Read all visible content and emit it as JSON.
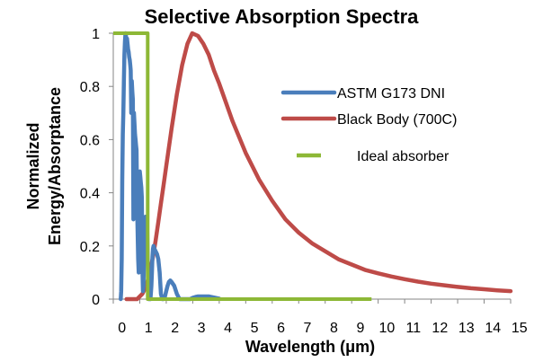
{
  "chart_data": {
    "type": "line",
    "title": "Selective Absorption Spectra",
    "xlabel": "Wavelength (μm)",
    "ylabel_lines": [
      "Normalized",
      "Energy/Absorptance"
    ],
    "xlim": [
      0,
      15
    ],
    "ylim": [
      0,
      1
    ],
    "x_ticks": [
      "0",
      "1",
      "2",
      "3",
      "4",
      "5",
      "6",
      "7",
      "8",
      "9",
      "10",
      "11",
      "12",
      "13",
      "14",
      "15"
    ],
    "y_ticks": [
      "0",
      "0.2",
      "0.4",
      "0.6",
      "0.8",
      "1"
    ],
    "grid": false,
    "legend_position": "right",
    "series": [
      {
        "name": "ASTM G173 DNI",
        "color": "#4A7EBB",
        "x": [
          0.28,
          0.3,
          0.32,
          0.34,
          0.36,
          0.38,
          0.4,
          0.42,
          0.44,
          0.46,
          0.48,
          0.5,
          0.52,
          0.54,
          0.56,
          0.58,
          0.6,
          0.62,
          0.64,
          0.66,
          0.68,
          0.7,
          0.72,
          0.74,
          0.76,
          0.78,
          0.8,
          0.82,
          0.84,
          0.86,
          0.88,
          0.9,
          0.92,
          0.94,
          0.96,
          0.98,
          1.0,
          1.02,
          1.04,
          1.06,
          1.08,
          1.1,
          1.12,
          1.14,
          1.16,
          1.18,
          1.2,
          1.22,
          1.24,
          1.26,
          1.28,
          1.3,
          1.32,
          1.34,
          1.36,
          1.38,
          1.4,
          1.42,
          1.44,
          1.46,
          1.48,
          1.5,
          1.52,
          1.55,
          1.6,
          1.65,
          1.7,
          1.75,
          1.8,
          1.85,
          1.9,
          1.95,
          2.0,
          2.05,
          2.1,
          2.15,
          2.2,
          2.3,
          2.4,
          2.5,
          2.6,
          2.7,
          2.8,
          2.9,
          3.0,
          3.1,
          3.2,
          3.3,
          3.4,
          3.5,
          3.6,
          3.7,
          3.8,
          3.9,
          4.0
        ],
        "y": [
          0.0,
          0.03,
          0.15,
          0.45,
          0.62,
          0.7,
          0.82,
          0.92,
          0.97,
          1.0,
          0.99,
          0.97,
          0.98,
          0.96,
          0.94,
          0.93,
          0.91,
          0.9,
          0.88,
          0.86,
          0.7,
          0.82,
          0.78,
          0.75,
          0.3,
          0.7,
          0.66,
          0.62,
          0.6,
          0.58,
          0.56,
          0.35,
          0.25,
          0.15,
          0.1,
          0.45,
          0.48,
          0.46,
          0.44,
          0.42,
          0.38,
          0.12,
          0.03,
          0.05,
          0.22,
          0.28,
          0.3,
          0.31,
          0.3,
          0.29,
          0.27,
          0.15,
          0.03,
          0.0,
          0.0,
          0.01,
          0.0,
          0.02,
          0.05,
          0.1,
          0.16,
          0.19,
          0.2,
          0.19,
          0.18,
          0.17,
          0.15,
          0.1,
          0.02,
          0.0,
          0.0,
          0.01,
          0.03,
          0.05,
          0.065,
          0.07,
          0.065,
          0.05,
          0.02,
          0.0,
          0.0,
          0.0,
          0.0,
          0.0,
          0.005,
          0.008,
          0.01,
          0.01,
          0.01,
          0.01,
          0.01,
          0.008,
          0.006,
          0.004,
          0.002
        ]
      },
      {
        "name": "Black Body (700C)",
        "color": "#BE4B48",
        "x": [
          0.5,
          0.7,
          0.9,
          1.0,
          1.1,
          1.2,
          1.3,
          1.4,
          1.5,
          1.6,
          1.7,
          1.8,
          1.9,
          2.0,
          2.2,
          2.4,
          2.6,
          2.8,
          2.98,
          3.2,
          3.4,
          3.6,
          3.8,
          4.0,
          4.5,
          5.0,
          5.5,
          6.0,
          6.5,
          7.0,
          7.5,
          8.0,
          8.5,
          9.0,
          9.5,
          10.0,
          10.5,
          11.0,
          11.5,
          12.0,
          12.5,
          13.0,
          13.5,
          14.0,
          14.5,
          15.0
        ],
        "y": [
          0.0,
          0.0,
          0.0,
          0.01,
          0.02,
          0.04,
          0.07,
          0.11,
          0.16,
          0.22,
          0.29,
          0.36,
          0.43,
          0.5,
          0.64,
          0.77,
          0.88,
          0.96,
          1.0,
          0.99,
          0.96,
          0.92,
          0.86,
          0.81,
          0.67,
          0.55,
          0.45,
          0.37,
          0.3,
          0.25,
          0.21,
          0.18,
          0.15,
          0.13,
          0.11,
          0.097,
          0.085,
          0.075,
          0.066,
          0.058,
          0.052,
          0.046,
          0.041,
          0.037,
          0.033,
          0.03
        ]
      },
      {
        "name": "Ideal absorber",
        "color": "#8DB836",
        "x": [
          0.0,
          1.3,
          1.3,
          9.75
        ],
        "y": [
          1.0,
          1.0,
          0.0,
          0.0
        ]
      }
    ]
  }
}
